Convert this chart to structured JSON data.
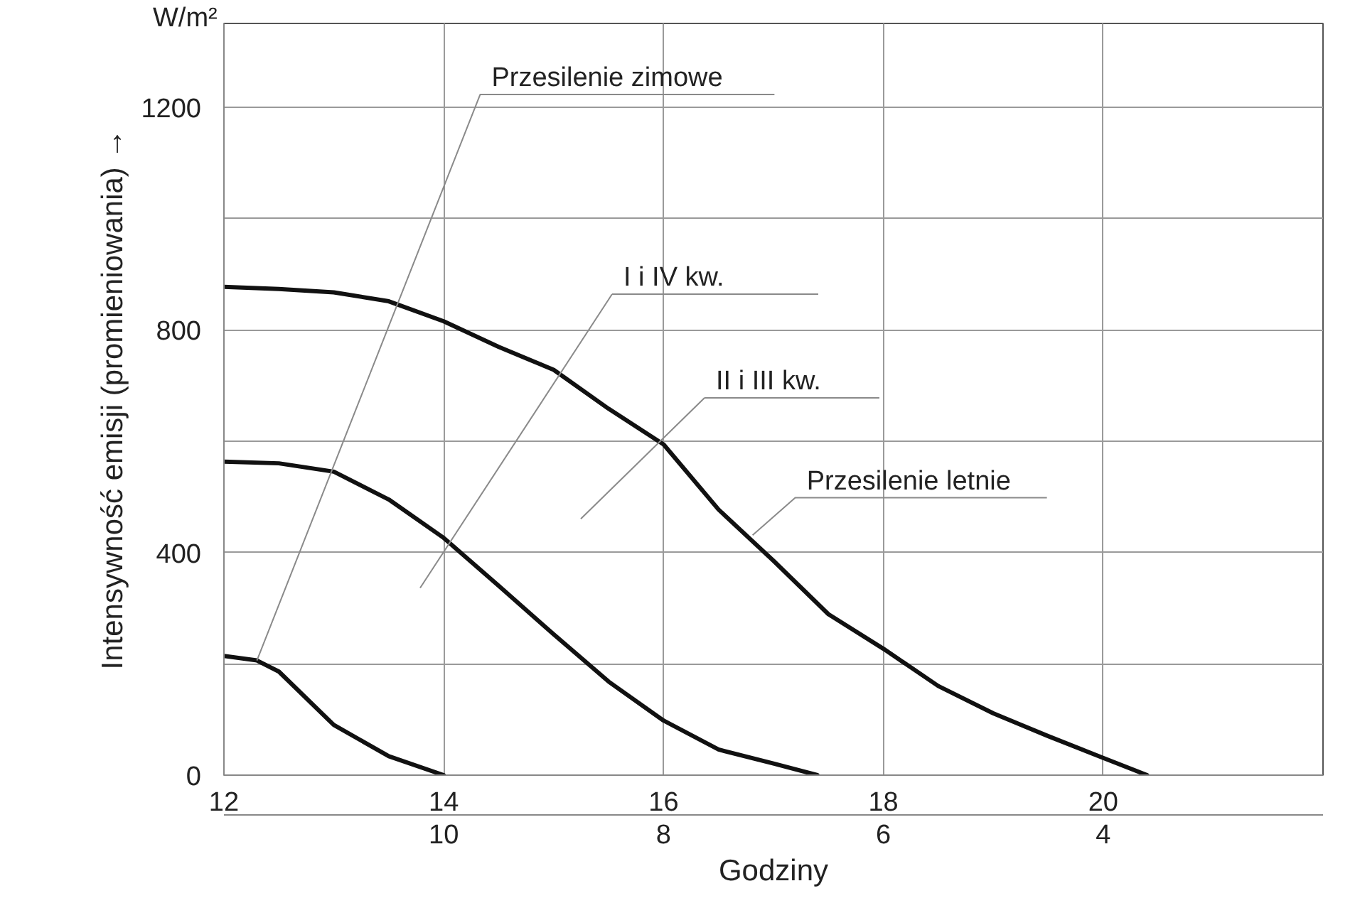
{
  "chart_data": {
    "type": "line",
    "xlabel": "Godziny",
    "ylabel": "Intensywność emisji (promieniowania) →",
    "xlim": [
      12,
      22
    ],
    "ylim": [
      0,
      1350
    ],
    "xticks": [
      12,
      14,
      16,
      18,
      20
    ],
    "x2lim": [
      12,
      2
    ],
    "x2ticks": [
      10,
      8,
      6,
      4
    ],
    "yticks": [
      0,
      {
        "value": 200,
        "label": null
      },
      400,
      {
        "value": 600,
        "label": null
      },
      800,
      {
        "value": 1000,
        "label": null
      },
      1200
    ],
    "grid": true,
    "marker": "none",
    "line_style": "solid",
    "series": [
      {
        "color": "#111111",
        "x": [
          12,
          12.5,
          13,
          13.5,
          14,
          14.5,
          15,
          15.5,
          16,
          16.5,
          17,
          17.5,
          18,
          18.5,
          19,
          19.5,
          20,
          20.4
        ],
        "values": [
          877,
          873,
          867,
          851,
          815,
          769,
          728,
          658,
          594,
          477,
          385,
          289,
          227,
          160,
          111,
          70,
          31,
          0
        ]
      },
      {
        "color": "#111111",
        "x": [
          12,
          12.5,
          13,
          13.5,
          14,
          14.5,
          15,
          15.5,
          16,
          16.5,
          17,
          17.4
        ],
        "values": [
          563,
          560,
          545,
          495,
          426,
          340,
          253,
          168,
          98,
          46,
          21,
          0
        ]
      },
      {
        "color": "#111111",
        "x": [
          12,
          12.3,
          12.5,
          13,
          13.5,
          14
        ],
        "values": [
          214,
          206,
          186,
          90,
          34,
          0
        ]
      }
    ],
    "annotations": [
      "W/m²",
      {
        "text": "Przesilenie zimowe",
        "x": 12.3,
        "y": 206
      },
      "I i IV kw.",
      "II i III kw.",
      {
        "text": "Przesilenie letnie",
        "x": 16.81,
        "y": 431
      }
    ]
  }
}
